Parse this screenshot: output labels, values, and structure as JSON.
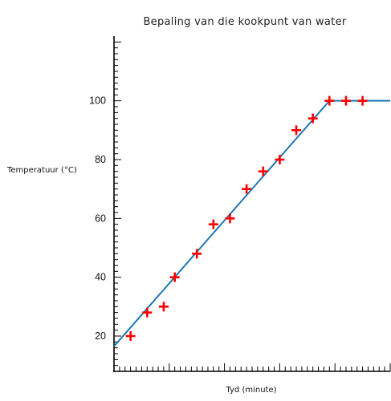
{
  "chart_data": {
    "type": "scatter",
    "title": "Bepaling van die kookpunt van water",
    "xlabel": "Tyd (minute)",
    "ylabel": "Temperatuur (°C)",
    "ylim": [
      8,
      122
    ],
    "xlim": [
      0,
      50
    ],
    "y_ticks": [
      20,
      40,
      60,
      80,
      100
    ],
    "x_tick_labels_shown": false,
    "grid": false,
    "series": [
      {
        "marker": "plus",
        "color": "#ff0000",
        "x": [
          3,
          6,
          9,
          11,
          15,
          18,
          21,
          24,
          27,
          30,
          33,
          36,
          39,
          42,
          45
        ],
        "y": [
          20,
          28,
          30,
          40,
          48,
          58,
          60,
          70,
          76,
          80,
          90,
          94,
          100,
          100,
          100
        ]
      },
      {
        "marker": "line",
        "color": "#1f77b4",
        "x": [
          0,
          39,
          50
        ],
        "y": [
          16.5,
          100,
          100
        ]
      }
    ]
  }
}
